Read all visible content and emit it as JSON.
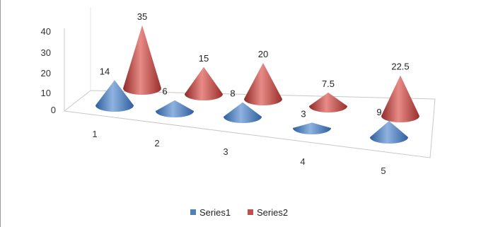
{
  "chart_data": {
    "type": "3d-cone",
    "categories": [
      "1",
      "2",
      "3",
      "4",
      "5"
    ],
    "series": [
      {
        "name": "Series1",
        "values": [
          14,
          6,
          8,
          3,
          9
        ],
        "labels": [
          "14",
          "6",
          "8",
          "3",
          "9"
        ],
        "color": "#4f81bd"
      },
      {
        "name": "Series2",
        "values": [
          35,
          15,
          20,
          7.5,
          22.5
        ],
        "labels": [
          "35",
          "15",
          "20",
          "7.5",
          "22.5"
        ],
        "color": "#c0504d"
      }
    ],
    "y_ticks": [
      "0",
      "10",
      "20",
      "30",
      "40"
    ],
    "ylim": [
      0,
      40
    ],
    "grid": false,
    "legend_position": "bottom"
  }
}
